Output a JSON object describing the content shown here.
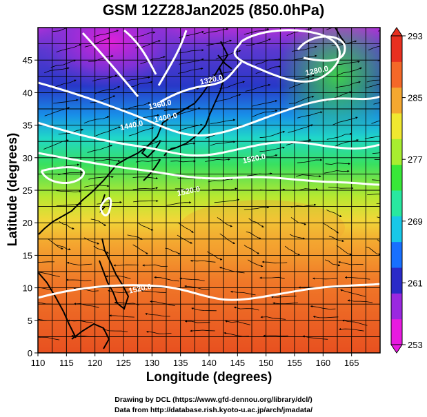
{
  "title": "GSM 12Z28Jan2025 (850.0hPa)",
  "xaxis": {
    "label": "Longitude (degrees)",
    "range": [
      110,
      170
    ],
    "ticks": [
      "110",
      "115",
      "120",
      "125",
      "130",
      "135",
      "140",
      "145",
      "150",
      "155",
      "160",
      "165"
    ]
  },
  "yaxis": {
    "label": "Latitude  (degrees)",
    "range": [
      0,
      50
    ],
    "ticks": [
      "0",
      "5",
      "10",
      "15",
      "20",
      "25",
      "30",
      "35",
      "40",
      "45"
    ]
  },
  "colorbar": {
    "ticks": [
      "253",
      "261",
      "269",
      "277",
      "285",
      "293"
    ],
    "colors": [
      "#e81ae0",
      "#9a28e0",
      "#2a2ac8",
      "#1870ff",
      "#18c8e8",
      "#28e8a0",
      "#38e838",
      "#a8ee30",
      "#f0e830",
      "#f4a830",
      "#f46828",
      "#e83020"
    ]
  },
  "contours": [
    {
      "label": "1360.0",
      "lon": 131.5,
      "lat": 37.8
    },
    {
      "label": "1400.0",
      "lon": 132.5,
      "lat": 35.8
    },
    {
      "label": "1440.0",
      "lon": 126.5,
      "lat": 34.6
    },
    {
      "label": "1320.0",
      "lon": 140.5,
      "lat": 41.6
    },
    {
      "label": "1280.0",
      "lon": 159.0,
      "lat": 43.0
    },
    {
      "label": "1520.0",
      "lon": 148.0,
      "lat": 29.5
    },
    {
      "label": "1520.0",
      "lon": 136.5,
      "lat": 24.5
    },
    {
      "label": "1520.0",
      "lon": 128.0,
      "lat": 9.5
    }
  ],
  "credits": [
    "Drawing by DCL (https://www.gfd-dennou.org/library/dcl/)",
    "Data from http://database.rish.kyoto-u.ac.jp/arch/jmadata/"
  ]
}
